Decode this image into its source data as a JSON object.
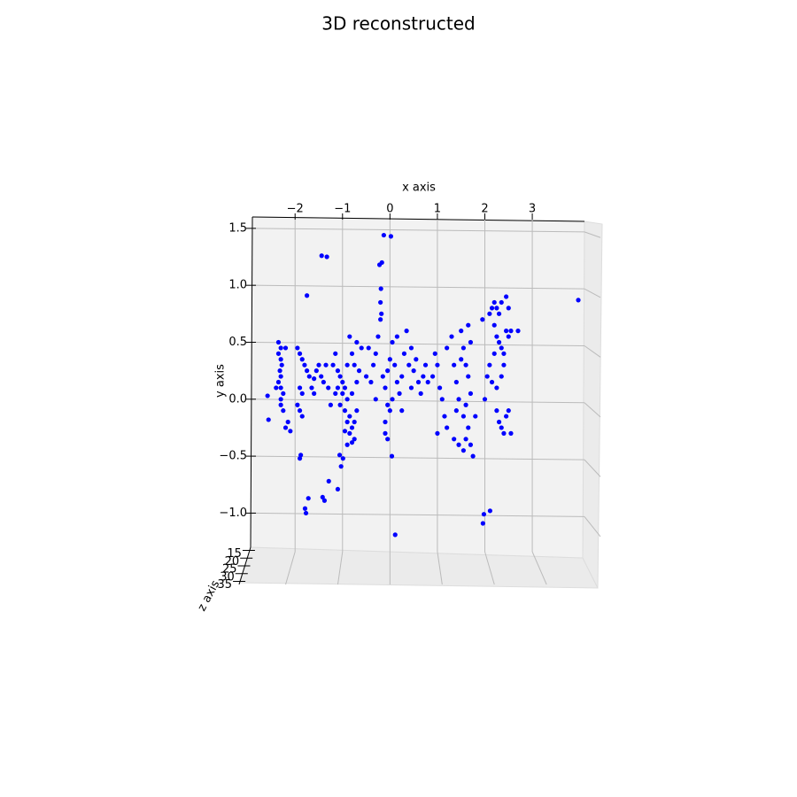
{
  "chart_data": {
    "type": "scatter3d",
    "title": "3D reconstructed",
    "x_label": "x axis",
    "y_label": "y axis",
    "z_label": "z axis",
    "xlim": [
      -2.9,
      4.1
    ],
    "ylim": [
      -1.3,
      1.6
    ],
    "zlim": [
      13,
      37
    ],
    "xticks": [
      {
        "value": -2,
        "label": "−2"
      },
      {
        "value": -1,
        "label": "−1"
      },
      0,
      1,
      2,
      3
    ],
    "yticks": [
      {
        "value": -1.0,
        "label": "−1.0"
      },
      {
        "value": -0.5,
        "label": "−0.5"
      },
      {
        "value": 0.0,
        "label": "0.0"
      },
      {
        "value": 0.5,
        "label": "0.5"
      },
      {
        "value": 1.0,
        "label": "1.0"
      },
      {
        "value": 1.5,
        "label": "1.5"
      }
    ],
    "zticks": [
      15,
      20,
      25,
      30,
      35
    ],
    "grid": true,
    "x": [
      -0.13,
      0.02,
      -1.44,
      -1.33,
      -0.17,
      -0.22,
      -1.75,
      -0.19,
      3.97,
      0.11,
      2.11,
      1.98,
      1.96,
      -1.77,
      -1.79,
      -1.72,
      -1.38,
      -1.42,
      -1.29,
      -1.1,
      -1.9,
      -1.88,
      0.04,
      -1.06,
      -0.99,
      -1.03,
      -2.56,
      -2.58,
      -2.35,
      -2.3,
      -2.35,
      -2.3,
      -2.28,
      -2.32,
      -2.3,
      -2.35,
      -2.3,
      -2.25,
      -2.3,
      -2.3,
      -2.25,
      -2.15,
      -2.2,
      -2.1,
      -2.4,
      -2.2,
      -1.95,
      -1.9,
      -1.85,
      -1.8,
      -1.75,
      -1.7,
      -1.6,
      -1.55,
      -1.5,
      -1.45,
      -1.4,
      -1.9,
      -1.85,
      -1.95,
      -1.9,
      -1.85,
      -1.65,
      -1.6,
      -1.35,
      -1.3,
      -1.2,
      -1.1,
      -1.05,
      -1.0,
      -0.95,
      -1.1,
      -1.15,
      -1.0,
      -0.9,
      -1.05,
      -0.95,
      -0.85,
      -0.9,
      -0.8,
      -0.85,
      -0.75,
      -0.8,
      -0.9,
      -0.75,
      -0.7,
      -0.8,
      -0.7,
      -0.75,
      -0.8,
      -0.7,
      -0.85,
      -0.6,
      -0.65,
      -0.9,
      -1.15,
      -1.25,
      -0.95,
      -0.5,
      -0.4,
      -0.35,
      -0.3,
      -0.25,
      -0.2,
      -0.15,
      -0.1,
      -0.05,
      0.0,
      0.05,
      0.1,
      0.15,
      0.2,
      0.25,
      0.3,
      0.35,
      0.4,
      0.45,
      0.5,
      0.55,
      0.6,
      0.65,
      0.7,
      0.75,
      0.8,
      -0.05,
      -0.1,
      0.0,
      -0.1,
      -0.05,
      0.05,
      -0.3,
      -0.45,
      0.15,
      -0.2,
      -0.18,
      0.25,
      0.45,
      0.9,
      1.0,
      1.05,
      1.1,
      1.15,
      1.2,
      1.2,
      1.3,
      1.35,
      1.4,
      1.45,
      1.4,
      1.35,
      1.45,
      1.55,
      1.6,
      1.5,
      1.55,
      1.6,
      1.65,
      1.7,
      1.6,
      1.55,
      1.65,
      1.7,
      1.75,
      1.65,
      1.7,
      1.5,
      1.8,
      1.0,
      0.95,
      2.1,
      2.15,
      2.2,
      2.25,
      2.3,
      2.35,
      2.45,
      2.5,
      2.2,
      2.25,
      2.3,
      2.35,
      2.4,
      2.45,
      2.5,
      2.2,
      2.1,
      2.05,
      2.15,
      2.25,
      2.35,
      2.4,
      2.55,
      2.25,
      2.3,
      2.35,
      2.4,
      2.45,
      2.5,
      2.55,
      2.0,
      2.7,
      1.95
    ],
    "series": [
      {
        "color": "#0000ff",
        "values": [
          1.44,
          1.43,
          1.26,
          1.25,
          1.2,
          1.18,
          0.91,
          0.97,
          0.87,
          -1.19,
          -0.98,
          -1.01,
          -1.09,
          -1.0,
          -0.96,
          -0.87,
          -0.89,
          -0.86,
          -0.72,
          -0.79,
          -0.52,
          -0.49,
          -0.5,
          -0.49,
          -0.52,
          -0.59,
          -0.18,
          0.03,
          0.5,
          0.45,
          0.4,
          0.35,
          0.3,
          0.25,
          0.2,
          0.15,
          0.1,
          0.05,
          0.0,
          -0.05,
          -0.1,
          -0.2,
          -0.25,
          -0.28,
          0.1,
          0.45,
          0.45,
          0.4,
          0.35,
          0.3,
          0.25,
          0.2,
          0.18,
          0.25,
          0.3,
          0.2,
          0.15,
          0.1,
          0.05,
          -0.05,
          -0.1,
          -0.15,
          0.1,
          0.05,
          0.3,
          0.1,
          0.3,
          0.25,
          0.2,
          0.15,
          0.1,
          0.1,
          0.05,
          0.05,
          0.0,
          -0.05,
          -0.1,
          -0.15,
          -0.2,
          -0.25,
          -0.3,
          -0.35,
          -0.38,
          -0.4,
          -0.2,
          -0.1,
          0.05,
          0.15,
          0.3,
          0.4,
          0.5,
          0.55,
          0.45,
          0.25,
          0.3,
          0.4,
          -0.05,
          -0.28,
          0.2,
          0.15,
          0.3,
          0.4,
          0.55,
          0.7,
          0.2,
          0.1,
          0.25,
          0.35,
          0.5,
          0.3,
          0.15,
          0.05,
          0.2,
          0.4,
          0.6,
          0.3,
          0.1,
          0.25,
          0.35,
          0.15,
          0.05,
          0.2,
          0.3,
          0.15,
          -0.05,
          -0.2,
          -0.1,
          -0.3,
          -0.35,
          0.0,
          0.0,
          0.45,
          0.55,
          0.85,
          0.75,
          -0.1,
          0.45,
          0.2,
          0.3,
          0.1,
          0.0,
          -0.15,
          -0.25,
          0.45,
          0.55,
          0.3,
          0.15,
          0.0,
          -0.1,
          -0.35,
          -0.4,
          -0.45,
          -0.35,
          0.6,
          0.45,
          0.3,
          0.2,
          0.05,
          -0.05,
          -0.15,
          -0.25,
          -0.4,
          -0.5,
          0.65,
          0.5,
          0.35,
          -0.15,
          -0.3,
          0.4,
          0.75,
          0.8,
          0.85,
          0.8,
          0.75,
          0.85,
          0.9,
          0.8,
          0.65,
          0.55,
          0.5,
          0.45,
          0.4,
          0.6,
          0.55,
          0.4,
          0.3,
          0.2,
          0.15,
          0.1,
          0.2,
          0.3,
          0.6,
          -0.1,
          -0.2,
          -0.25,
          -0.3,
          -0.15,
          -0.1,
          -0.3,
          0.0,
          0.6,
          0.7
        ]
      }
    ]
  }
}
